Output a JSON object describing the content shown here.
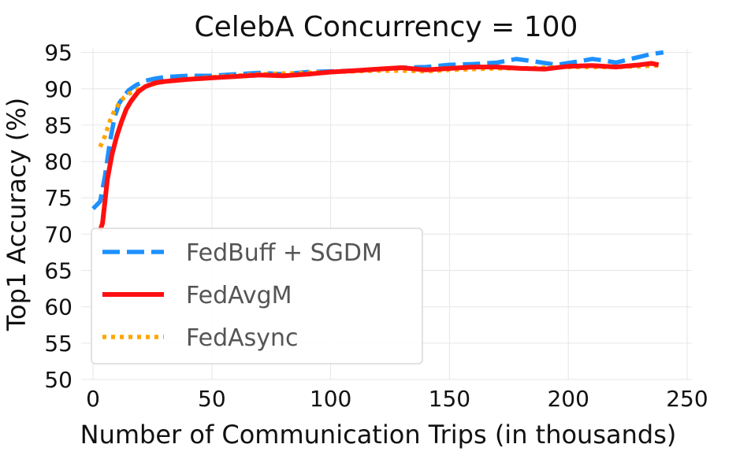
{
  "chart_data": {
    "type": "line",
    "title": "CelebA Concurrency = 100",
    "xlabel": "Number of Communication Trips (in thousands)",
    "ylabel": "Top1 Accuracy (%)",
    "xlim": [
      -5,
      252
    ],
    "ylim": [
      50,
      95.5
    ],
    "xticks": [
      0,
      50,
      100,
      150,
      200,
      250
    ],
    "yticks": [
      50,
      55,
      60,
      65,
      70,
      75,
      80,
      85,
      90,
      95
    ],
    "grid": true,
    "legend_position": "lower-left",
    "series": [
      {
        "name": "FedBuff + SGDM",
        "color": "#1e90ff",
        "style": "dashed",
        "x": [
          0,
          3,
          5,
          7,
          9,
          11,
          13,
          15,
          18,
          22,
          26,
          30,
          40,
          50,
          60,
          70,
          80,
          90,
          100,
          110,
          120,
          130,
          140,
          150,
          160,
          170,
          178,
          185,
          195,
          205,
          210,
          215,
          220,
          225,
          230,
          235,
          240
        ],
        "y": [
          73.5,
          74.5,
          78,
          82.5,
          86,
          88,
          89,
          89.8,
          90.5,
          91.1,
          91.4,
          91.6,
          91.8,
          91.8,
          92.0,
          92.2,
          92.0,
          92.3,
          92.4,
          92.5,
          92.7,
          92.9,
          93.0,
          93.3,
          93.4,
          93.6,
          94.1,
          93.8,
          93.3,
          93.8,
          94.1,
          93.9,
          93.6,
          94.0,
          94.4,
          94.8,
          95.0
        ]
      },
      {
        "name": "FedAvgM",
        "color": "#ff1010",
        "style": "solid",
        "x": [
          3,
          4,
          5,
          6,
          8,
          10,
          12,
          14,
          16,
          19,
          22,
          26,
          30,
          40,
          50,
          60,
          70,
          80,
          90,
          100,
          110,
          120,
          130,
          140,
          150,
          160,
          170,
          180,
          190,
          200,
          210,
          220,
          230,
          235,
          238
        ],
        "y": [
          70.5,
          71.5,
          74.5,
          77.5,
          81,
          83.5,
          85.5,
          87.2,
          88.3,
          89.6,
          90.3,
          90.8,
          91.0,
          91.3,
          91.5,
          91.7,
          91.9,
          91.8,
          92.0,
          92.3,
          92.5,
          92.7,
          92.9,
          92.6,
          92.8,
          93.0,
          93.0,
          92.8,
          92.7,
          93.1,
          93.2,
          93.0,
          93.3,
          93.5,
          93.3
        ]
      },
      {
        "name": "FedAsync",
        "color": "#ffa500",
        "style": "dotted",
        "x": [
          3,
          5,
          7,
          9,
          11,
          13,
          15,
          18,
          22,
          26,
          30,
          40,
          50,
          60,
          70,
          80,
          90,
          100,
          110,
          120,
          130,
          140,
          150,
          160,
          170,
          180,
          190,
          200,
          210,
          220,
          230,
          238
        ],
        "y": [
          82,
          83.5,
          85.5,
          87,
          88,
          88.8,
          89.3,
          89.8,
          90.3,
          90.7,
          91.0,
          91.3,
          91.6,
          91.8,
          92.0,
          92.1,
          92.2,
          92.3,
          92.4,
          92.5,
          92.5,
          92.4,
          92.6,
          92.7,
          92.8,
          92.8,
          92.9,
          93.0,
          93.0,
          93.0,
          93.1,
          93.2
        ]
      }
    ]
  }
}
